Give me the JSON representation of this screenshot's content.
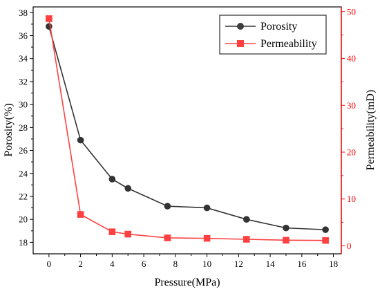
{
  "chart_data": {
    "type": "line",
    "xlabel": "Pressure(MPa)",
    "ylabel_left": "Porosity(%)",
    "ylabel_right": "Permeability(mD)",
    "xlim": [
      -1,
      18.5
    ],
    "ylim_left": [
      17,
      38.5
    ],
    "ylim_right": [
      -1.7,
      51
    ],
    "x_ticks": [
      0,
      2,
      4,
      6,
      8,
      10,
      12,
      14,
      16,
      18
    ],
    "y_left_ticks": [
      18,
      20,
      22,
      24,
      26,
      28,
      30,
      32,
      34,
      36,
      38
    ],
    "y_right_ticks": [
      0,
      10,
      20,
      30,
      40,
      50
    ],
    "right_axis_color": "#ff0000",
    "legend_position": "top-right",
    "x": [
      0,
      2,
      4,
      5,
      7.5,
      10,
      12.5,
      15,
      17.5
    ],
    "series": [
      {
        "name": "Porosity",
        "axis": "left",
        "color": "#333333",
        "marker": "circle",
        "values": [
          36.8,
          26.9,
          23.5,
          22.7,
          21.15,
          21.0,
          20.0,
          19.25,
          19.1
        ]
      },
      {
        "name": "Permeability",
        "axis": "right",
        "color": "#ff4040",
        "marker": "square",
        "values": [
          48.5,
          6.7,
          3.0,
          2.5,
          1.7,
          1.6,
          1.4,
          1.2,
          1.15
        ]
      }
    ]
  }
}
